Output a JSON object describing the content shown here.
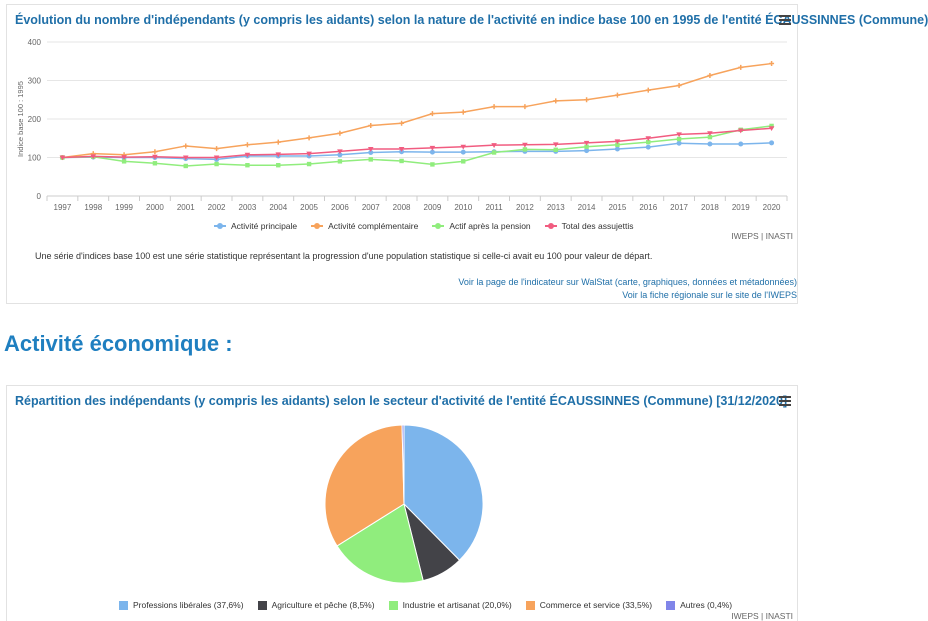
{
  "card1": {
    "title": "Évolution du nombre d'indépendants (y compris les aidants) selon la nature de l'activité en indice base 100 en 1995 de l'entité ÉCAUSSINNES (Commune)",
    "credits": "IWEPS | INASTI",
    "note": "Une série d'indices base 100 est une série statistique représentant la progression d'une population statistique si celle-ci avait eu 100 pour valeur de départ.",
    "link1": "Voir la page de l'indicateur sur WalStat (carte, graphiques, données et métadonnées)",
    "link2": "Voir la fiche régionale sur le site de l'IWEPS"
  },
  "section_heading": "Activité économique :",
  "card2": {
    "title": "Répartition des indépendants (y compris les aidants) selon le secteur d'activité de l'entité ÉCAUSSINNES (Commune) [31/12/2020]",
    "credits": "IWEPS | INASTI"
  },
  "chart_data": [
    {
      "type": "line",
      "title": "Évolution du nombre d'indépendants (y compris les aidants) selon la nature de l'activité en indice base 100 en 1995 de l'entité ÉCAUSSINNES (Commune)",
      "xlabel": "",
      "ylabel": "Indice base 100 : 1995",
      "ylim": [
        0,
        400
      ],
      "yticks": [
        0,
        100,
        200,
        300,
        400
      ],
      "grid": true,
      "legend": "bottom",
      "x": [
        "1997",
        "1998",
        "1999",
        "2000",
        "2001",
        "2002",
        "2003",
        "2004",
        "2005",
        "2006",
        "2007",
        "2008",
        "2009",
        "2010",
        "2011",
        "2012",
        "2013",
        "2014",
        "2015",
        "2016",
        "2017",
        "2018",
        "2019",
        "2020"
      ],
      "series": [
        {
          "name": "Activité principale",
          "color": "#7cb5ec",
          "values": [
            100,
            101,
            100,
            100,
            97,
            95,
            104,
            104,
            104,
            107,
            113,
            115,
            114,
            114,
            115,
            116,
            116,
            118,
            122,
            127,
            137,
            135,
            135,
            138
          ]
        },
        {
          "name": "Activité complémentaire",
          "color": "#f7a35c",
          "values": [
            100,
            110,
            107,
            115,
            130,
            123,
            133,
            140,
            151,
            163,
            183,
            189,
            214,
            218,
            232,
            232,
            247,
            250,
            262,
            275,
            287,
            313,
            334,
            344
          ]
        },
        {
          "name": "Actif après la pension",
          "color": "#90ed7d",
          "values": [
            100,
            102,
            90,
            85,
            78,
            83,
            80,
            80,
            83,
            90,
            95,
            91,
            82,
            90,
            113,
            121,
            120,
            128,
            133,
            140,
            148,
            153,
            172,
            182
          ]
        },
        {
          "name": "Total des assujettis",
          "color": "#f15c80",
          "values": [
            100,
            103,
            101,
            102,
            100,
            100,
            107,
            108,
            110,
            116,
            122,
            122,
            125,
            128,
            132,
            133,
            134,
            138,
            142,
            150,
            160,
            163,
            170,
            176
          ]
        }
      ]
    },
    {
      "type": "pie",
      "title": "Répartition des indépendants (y compris les aidants) selon le secteur d'activité de l'entité ÉCAUSSINNES (Commune) [31/12/2020]",
      "legend": "bottom",
      "slices": [
        {
          "label": "Professions libérales (37,6%)",
          "value": 37.6,
          "color": "#7cb5ec"
        },
        {
          "label": "Agriculture et pêche (8,5%)",
          "value": 8.5,
          "color": "#434348"
        },
        {
          "label": "Industrie et artisanat (20,0%)",
          "value": 20.0,
          "color": "#90ed7d"
        },
        {
          "label": "Commerce et service (33,5%)",
          "value": 33.5,
          "color": "#f7a35c"
        },
        {
          "label": "Autres (0,4%)",
          "value": 0.4,
          "color": "#8085e9"
        }
      ]
    }
  ]
}
